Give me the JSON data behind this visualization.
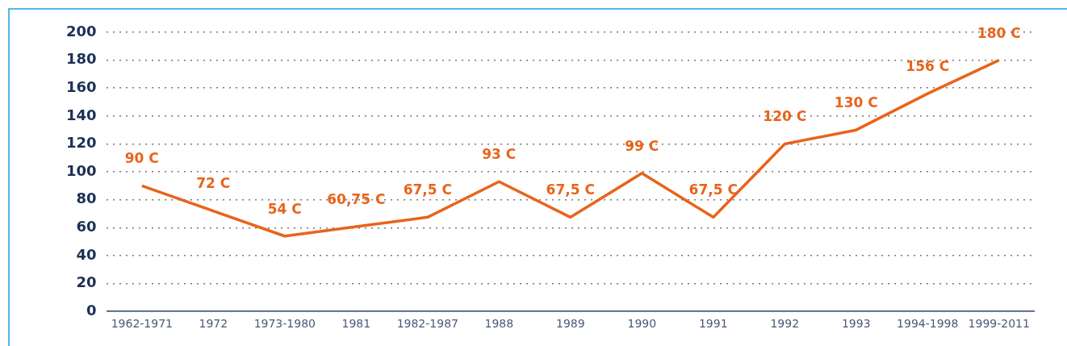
{
  "chart_data": {
    "type": "line",
    "categories": [
      "1962-1971",
      "1972",
      "1973-1980",
      "1981",
      "1982-1987",
      "1988",
      "1989",
      "1990",
      "1991",
      "1992",
      "1993",
      "1994-1998",
      "1999-2011"
    ],
    "values": [
      90,
      72,
      54,
      60.75,
      67.5,
      93,
      67.5,
      99,
      67.5,
      120,
      130,
      156,
      180
    ],
    "value_labels": [
      "90 C",
      "72 C",
      "54 C",
      "60,75 C",
      "67,5 C",
      "93 C",
      "67,5 C",
      "99 C",
      "67,5 C",
      "120 C",
      "130 C",
      "156 C",
      "180 C"
    ],
    "color": "#e8641b",
    "ylim": [
      0,
      200
    ],
    "yticks": [
      0,
      20,
      40,
      60,
      80,
      100,
      120,
      140,
      160,
      180,
      200
    ],
    "grid": "y",
    "legend": false,
    "marker": "none",
    "line_style": "solid"
  }
}
